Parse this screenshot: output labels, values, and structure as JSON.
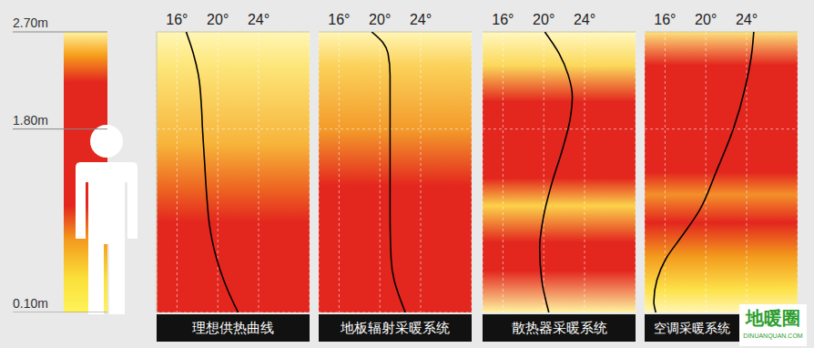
{
  "chart_data": [
    {
      "type": "line",
      "title": "理想供热曲线",
      "color": "#000000",
      "grid": true,
      "tick_labels": true,
      "x": [
        16.9,
        17.6,
        18.1,
        18.4,
        18.5,
        18.7,
        18.9,
        19.2,
        19.6,
        20.2,
        21.0,
        22.0
      ],
      "values": [
        2.7,
        2.5,
        2.3,
        2.0,
        1.8,
        1.5,
        1.2,
        0.9,
        0.7,
        0.5,
        0.3,
        0.1
      ],
      "xlim": [
        14,
        29
      ],
      "xticks": [
        {
          "value": 16,
          "label": "16°"
        },
        {
          "value": 20,
          "label": "20°"
        },
        {
          "value": 24,
          "label": "24°"
        }
      ],
      "ylim": [
        0.1,
        2.7
      ],
      "yticks": [
        {
          "value": 0.1,
          "label": "0.10m"
        },
        {
          "value": 1.8,
          "label": "1.80m"
        },
        {
          "value": 2.7,
          "label": "2.70m"
        }
      ]
    },
    {
      "type": "line",
      "title": "地板辐射采暖系统",
      "color": "#000000",
      "grid": true,
      "tick_labels": "x",
      "x": [
        19.2,
        20.3,
        20.8,
        21.0,
        21.0,
        21.0,
        21.0,
        21.1,
        21.4,
        21.9,
        22.5
      ],
      "values": [
        2.7,
        2.6,
        2.5,
        2.3,
        2.0,
        1.5,
        1.0,
        0.6,
        0.4,
        0.25,
        0.1
      ],
      "xlim": [
        14,
        29
      ],
      "xticks": [
        {
          "value": 16,
          "label": "16°"
        },
        {
          "value": 20,
          "label": "20°"
        },
        {
          "value": 24,
          "label": "24°"
        }
      ],
      "ylim": [
        0.1,
        2.7
      ],
      "yticks": [
        {
          "value": 0.1,
          "label": "0.10m"
        },
        {
          "value": 1.8,
          "label": "1.80m"
        },
        {
          "value": 2.7,
          "label": "2.70m"
        }
      ]
    },
    {
      "type": "line",
      "title": "散热器采暖系统",
      "color": "#000000",
      "grid": true,
      "tick_labels": "x",
      "x": [
        20.1,
        21.5,
        22.4,
        22.8,
        22.6,
        21.8,
        20.8,
        20.0,
        19.6,
        19.8,
        20.5
      ],
      "values": [
        2.7,
        2.5,
        2.3,
        2.1,
        1.9,
        1.6,
        1.3,
        1.0,
        0.7,
        0.4,
        0.1
      ],
      "xlim": [
        14,
        29
      ],
      "xticks": [
        {
          "value": 16,
          "label": "16°"
        },
        {
          "value": 20,
          "label": "20°"
        },
        {
          "value": 24,
          "label": "24°"
        }
      ],
      "ylim": [
        0.1,
        2.7
      ],
      "yticks": [
        {
          "value": 0.1,
          "label": "0.10m"
        },
        {
          "value": 1.8,
          "label": "1.80m"
        },
        {
          "value": 2.7,
          "label": "2.70m"
        }
      ]
    },
    {
      "type": "line",
      "title": "空调采暖系统",
      "color": "#000000",
      "grid": true,
      "tick_labels": "x",
      "x": [
        24.7,
        24.5,
        23.9,
        22.7,
        21.0,
        19.4,
        17.6,
        16.1,
        15.2,
        14.9,
        15.1
      ],
      "values": [
        2.7,
        2.5,
        2.2,
        1.8,
        1.4,
        1.05,
        0.8,
        0.6,
        0.4,
        0.2,
        0.1
      ],
      "xlim": [
        14,
        29
      ],
      "xticks": [
        {
          "value": 16,
          "label": "16°"
        },
        {
          "value": 20,
          "label": "20°"
        },
        {
          "value": 24,
          "label": "24°"
        }
      ],
      "ylim": [
        0.1,
        2.7
      ],
      "yticks": [
        {
          "value": 0.1,
          "label": "0.10m"
        },
        {
          "value": 1.8,
          "label": "1.80m"
        },
        {
          "value": 2.7,
          "label": "2.70m"
        }
      ],
      "annotations": [
        "地暖圈",
        "DINUANQUAN.COM"
      ]
    }
  ]
}
